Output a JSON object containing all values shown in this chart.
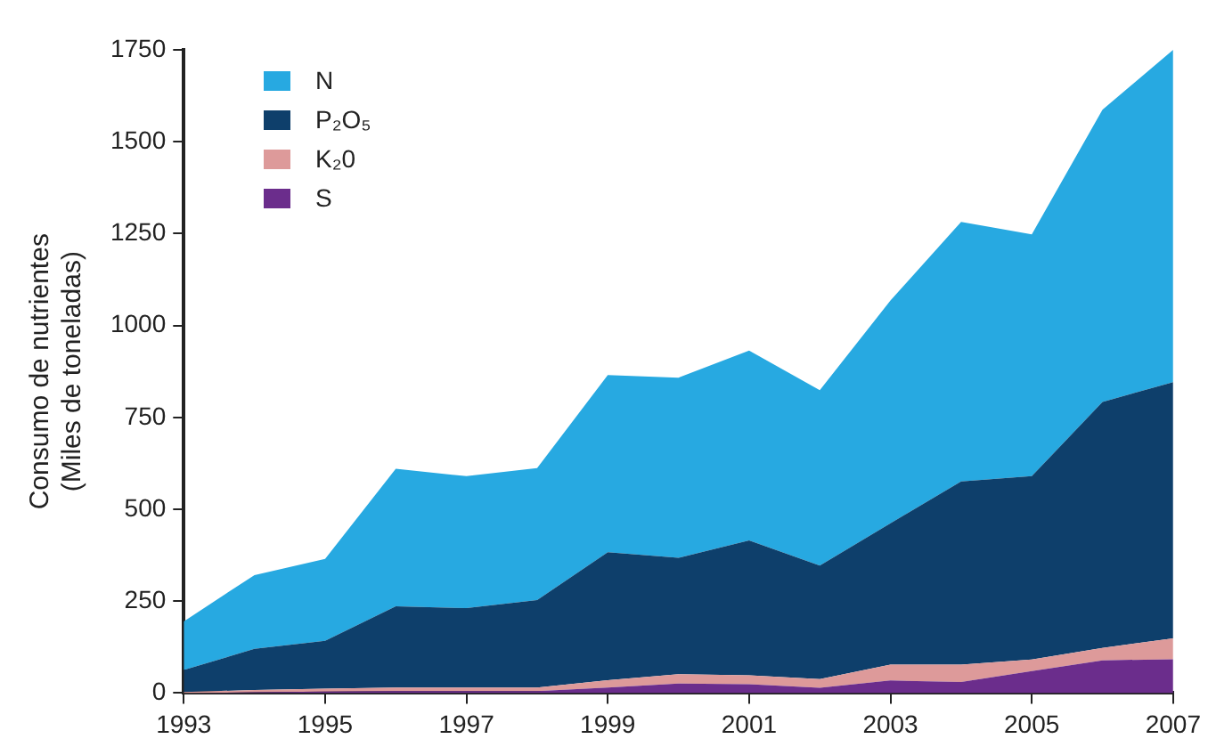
{
  "chart_data": {
    "type": "area",
    "stacked": true,
    "ylabel": "Consumo de nutrientes\n(Miles de toneladas)",
    "x": [
      1993,
      1994,
      1995,
      1996,
      1997,
      1998,
      1999,
      2000,
      2001,
      2002,
      2003,
      2004,
      2005,
      2006,
      2007
    ],
    "xlim": [
      1993,
      2007
    ],
    "xticks": [
      1993,
      1995,
      1997,
      1999,
      2001,
      2003,
      2005,
      2007
    ],
    "ylim": [
      0,
      1750
    ],
    "yticks": [
      0,
      250,
      500,
      750,
      1000,
      1250,
      1500,
      1750
    ],
    "grid": false,
    "legend": "top left",
    "series": [
      {
        "name": "S",
        "color": "#6b2d8c",
        "values": [
          0,
          2,
          4,
          5,
          5,
          5,
          15,
          26,
          24,
          14,
          34,
          30,
          60,
          89,
          92
        ]
      },
      {
        "name": "K₂0",
        "color": "#dd9a9a",
        "values": [
          3,
          6,
          8,
          10,
          10,
          10,
          20,
          25,
          24,
          24,
          43,
          47,
          31,
          34,
          57
        ]
      },
      {
        "name": "P₂O₅",
        "color": "#0e3f6b",
        "values": [
          60,
          112,
          130,
          221,
          216,
          238,
          348,
          317,
          367,
          309,
          385,
          499,
          499,
          669,
          697
        ]
      },
      {
        "name": "N",
        "color": "#27a9e1",
        "values": [
          132,
          201,
          223,
          374,
          359,
          359,
          482,
          490,
          517,
          477,
          606,
          706,
          658,
          795,
          904
        ]
      }
    ]
  }
}
